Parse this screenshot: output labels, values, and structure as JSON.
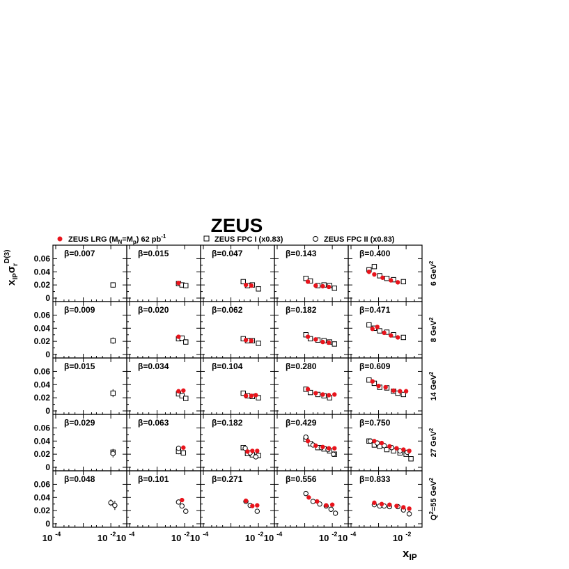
{
  "title": "ZEUS",
  "legend": [
    {
      "label": "ZEUS LRG (M_N=M_p) 62 pb^-1",
      "marker": "filled-circle",
      "color": "#e8141c"
    },
    {
      "label": "ZEUS FPC I (x0.83)",
      "marker": "open-square",
      "color": "#000000"
    },
    {
      "label": "ZEUS FPC II (x0.83)",
      "marker": "open-circle",
      "color": "#000000"
    }
  ],
  "y_axis_label": "x_IP σ_r^D(3)",
  "x_axis_label": "x_IP",
  "y_tick_labels": [
    "0",
    "0.02",
    "0.04",
    "0.06"
  ],
  "x_tick_labels": [
    "10^-4",
    "10^-2"
  ],
  "q2_row_labels": [
    "6 GeV^2",
    "8 GeV^2",
    "14 GeV^2",
    "27 GeV^2",
    "Q^2=55 GeV^2"
  ],
  "chart_data": {
    "type": "scatter",
    "layout": "grid 5 rows x 5 columns",
    "xscale": "log",
    "xlim": [
      0.0001,
      0.03
    ],
    "ylim": [
      0,
      0.07
    ],
    "x_ticks": [
      0.0001,
      0.01
    ],
    "y_ticks": [
      0,
      0.02,
      0.04,
      0.06
    ],
    "series_names": [
      "ZEUS LRG (M_N=M_p) 62 pb^-1",
      "ZEUS FPC I (x0.83)",
      "ZEUS FPC II (x0.83)"
    ],
    "panels": [
      {
        "q2": "6 GeV^2",
        "beta": "β=0.007",
        "lrg": [],
        "fpc1": [
          [
            0.012,
            0.02,
            0.004
          ]
        ],
        "fpc2": []
      },
      {
        "q2": "6 GeV^2",
        "beta": "β=0.015",
        "lrg": [
          [
            0.006,
            0.023,
            0.001
          ]
        ],
        "fpc1": [
          [
            0.006,
            0.022,
            0.002
          ],
          [
            0.008,
            0.02,
            0.003
          ],
          [
            0.011,
            0.019,
            0.004
          ]
        ],
        "fpc2": []
      },
      {
        "q2": "6 GeV^2",
        "beta": "β=0.047",
        "lrg": [
          [
            0.0035,
            0.02,
            0.001
          ],
          [
            0.0055,
            0.019,
            0.001
          ]
        ],
        "fpc1": [
          [
            0.0028,
            0.025,
            0.002
          ],
          [
            0.004,
            0.019,
            0.002
          ],
          [
            0.006,
            0.02,
            0.002
          ],
          [
            0.01,
            0.014,
            0.003
          ]
        ],
        "fpc2": []
      },
      {
        "q2": "6 GeV^2",
        "beta": "β=0.143",
        "lrg": [
          [
            0.0013,
            0.025,
            0.001
          ],
          [
            0.0025,
            0.019,
            0.001
          ],
          [
            0.0045,
            0.018,
            0.001
          ],
          [
            0.0075,
            0.017,
            0.001
          ]
        ],
        "fpc1": [
          [
            0.0011,
            0.03,
            0.002
          ],
          [
            0.0016,
            0.026,
            0.002
          ],
          [
            0.003,
            0.019,
            0.002
          ],
          [
            0.005,
            0.02,
            0.002
          ],
          [
            0.008,
            0.019,
            0.002
          ],
          [
            0.012,
            0.015,
            0.002
          ]
        ],
        "fpc2": []
      },
      {
        "q2": "6 GeV^2",
        "beta": "β=0.400",
        "lrg": [
          [
            0.00045,
            0.04,
            0.002
          ],
          [
            0.0007,
            0.036,
            0.001
          ],
          [
            0.0014,
            0.031,
            0.001
          ],
          [
            0.0028,
            0.027,
            0.001
          ],
          [
            0.005,
            0.024,
            0.001
          ]
        ],
        "fpc1": [
          [
            0.00045,
            0.043,
            0.003
          ],
          [
            0.0007,
            0.048,
            0.003
          ],
          [
            0.0011,
            0.034,
            0.002
          ],
          [
            0.002,
            0.03,
            0.002
          ],
          [
            0.0035,
            0.028,
            0.002
          ],
          [
            0.008,
            0.025,
            0.002
          ]
        ],
        "fpc2": []
      },
      {
        "q2": "8 GeV^2",
        "beta": "β=0.009",
        "lrg": [],
        "fpc1": [
          [
            0.012,
            0.021,
            0.005
          ]
        ],
        "fpc2": []
      },
      {
        "q2": "8 GeV^2",
        "beta": "β=0.020",
        "lrg": [
          [
            0.006,
            0.027,
            0.001
          ]
        ],
        "fpc1": [
          [
            0.006,
            0.024,
            0.002
          ],
          [
            0.008,
            0.025,
            0.003
          ],
          [
            0.011,
            0.019,
            0.004
          ]
        ],
        "fpc2": []
      },
      {
        "q2": "8 GeV^2",
        "beta": "β=0.062",
        "lrg": [
          [
            0.0035,
            0.022,
            0.001
          ],
          [
            0.0055,
            0.021,
            0.001
          ]
        ],
        "fpc1": [
          [
            0.0028,
            0.024,
            0.002
          ],
          [
            0.004,
            0.021,
            0.002
          ],
          [
            0.006,
            0.021,
            0.002
          ],
          [
            0.01,
            0.017,
            0.003
          ]
        ],
        "fpc2": []
      },
      {
        "q2": "8 GeV^2",
        "beta": "β=0.182",
        "lrg": [
          [
            0.0013,
            0.027,
            0.001
          ],
          [
            0.0025,
            0.023,
            0.001
          ],
          [
            0.0045,
            0.019,
            0.001
          ],
          [
            0.0075,
            0.018,
            0.001
          ]
        ],
        "fpc1": [
          [
            0.0011,
            0.03,
            0.002
          ],
          [
            0.0016,
            0.024,
            0.002
          ],
          [
            0.003,
            0.022,
            0.002
          ],
          [
            0.005,
            0.021,
            0.002
          ],
          [
            0.008,
            0.019,
            0.002
          ],
          [
            0.012,
            0.016,
            0.002
          ]
        ],
        "fpc2": []
      },
      {
        "q2": "8 GeV^2",
        "beta": "β=0.471",
        "lrg": [
          [
            0.0006,
            0.039,
            0.001
          ],
          [
            0.0009,
            0.042,
            0.001
          ],
          [
            0.0016,
            0.033,
            0.001
          ],
          [
            0.0028,
            0.029,
            0.001
          ],
          [
            0.005,
            0.026,
            0.001
          ]
        ],
        "fpc1": [
          [
            0.00045,
            0.045,
            0.003
          ],
          [
            0.0007,
            0.04,
            0.003
          ],
          [
            0.0011,
            0.036,
            0.002
          ],
          [
            0.002,
            0.034,
            0.002
          ],
          [
            0.0035,
            0.03,
            0.002
          ],
          [
            0.008,
            0.026,
            0.002
          ]
        ],
        "fpc2": []
      },
      {
        "q2": "14 GeV^2",
        "beta": "β=0.015",
        "lrg": [],
        "fpc1": [
          [
            0.012,
            0.027,
            0.006
          ]
        ],
        "fpc2": []
      },
      {
        "q2": "14 GeV^2",
        "beta": "β=0.034",
        "lrg": [
          [
            0.006,
            0.03,
            0.001
          ],
          [
            0.009,
            0.031,
            0.001
          ]
        ],
        "fpc1": [
          [
            0.006,
            0.026,
            0.002
          ],
          [
            0.008,
            0.023,
            0.003
          ],
          [
            0.011,
            0.019,
            0.004
          ]
        ],
        "fpc2": []
      },
      {
        "q2": "14 GeV^2",
        "beta": "β=0.104",
        "lrg": [
          [
            0.0035,
            0.023,
            0.001
          ],
          [
            0.0055,
            0.023,
            0.001
          ],
          [
            0.008,
            0.024,
            0.001
          ]
        ],
        "fpc1": [
          [
            0.0028,
            0.027,
            0.002
          ],
          [
            0.004,
            0.023,
            0.002
          ],
          [
            0.006,
            0.022,
            0.002
          ],
          [
            0.01,
            0.02,
            0.003
          ]
        ],
        "fpc2": []
      },
      {
        "q2": "14 GeV^2",
        "beta": "β=0.280",
        "lrg": [
          [
            0.0013,
            0.033,
            0.001
          ],
          [
            0.0025,
            0.027,
            0.001
          ],
          [
            0.0045,
            0.025,
            0.001
          ],
          [
            0.0075,
            0.024,
            0.001
          ],
          [
            0.012,
            0.025,
            0.001
          ]
        ],
        "fpc1": [
          [
            0.0011,
            0.033,
            0.002
          ],
          [
            0.0016,
            0.028,
            0.002
          ],
          [
            0.003,
            0.025,
            0.002
          ],
          [
            0.005,
            0.023,
            0.002
          ],
          [
            0.008,
            0.02,
            0.002
          ]
        ],
        "fpc2": []
      },
      {
        "q2": "14 GeV^2",
        "beta": "β=0.609",
        "lrg": [
          [
            0.0006,
            0.045,
            0.001
          ],
          [
            0.001,
            0.038,
            0.001
          ],
          [
            0.0018,
            0.036,
            0.001
          ],
          [
            0.0035,
            0.031,
            0.001
          ],
          [
            0.006,
            0.03,
            0.001
          ],
          [
            0.01,
            0.03,
            0.001
          ]
        ],
        "fpc1": [
          [
            0.00045,
            0.047,
            0.003
          ],
          [
            0.0007,
            0.042,
            0.003
          ],
          [
            0.0011,
            0.036,
            0.002
          ],
          [
            0.002,
            0.035,
            0.002
          ],
          [
            0.0035,
            0.03,
            0.002
          ],
          [
            0.005,
            0.027,
            0.002
          ],
          [
            0.008,
            0.025,
            0.002
          ]
        ],
        "fpc2": []
      },
      {
        "q2": "27 GeV^2",
        "beta": "β=0.029",
        "lrg": [],
        "fpc1": [
          [
            0.012,
            0.023,
            0.005
          ]
        ],
        "fpc2": [
          [
            0.012,
            0.021,
            0.006
          ]
        ]
      },
      {
        "q2": "27 GeV^2",
        "beta": "β=0.063",
        "lrg": [
          [
            0.009,
            0.03,
            0.001
          ]
        ],
        "fpc1": [
          [
            0.006,
            0.024,
            0.004
          ],
          [
            0.009,
            0.022,
            0.004
          ]
        ],
        "fpc2": [
          [
            0.006,
            0.029,
            0.004
          ]
        ]
      },
      {
        "q2": "27 GeV^2",
        "beta": "β=0.182",
        "lrg": [
          [
            0.004,
            0.024,
            0.001
          ],
          [
            0.006,
            0.025,
            0.001
          ],
          [
            0.009,
            0.025,
            0.001
          ]
        ],
        "fpc1": [
          [
            0.0028,
            0.03,
            0.002
          ],
          [
            0.004,
            0.021,
            0.003
          ],
          [
            0.006,
            0.019,
            0.003
          ],
          [
            0.01,
            0.018,
            0.004
          ]
        ],
        "fpc2": [
          [
            0.0033,
            0.029,
            0.002
          ],
          [
            0.005,
            0.022,
            0.003
          ],
          [
            0.008,
            0.016,
            0.004
          ]
        ]
      },
      {
        "q2": "27 GeV^2",
        "beta": "β=0.429",
        "lrg": [
          [
            0.0013,
            0.04,
            0.001
          ],
          [
            0.0025,
            0.033,
            0.001
          ],
          [
            0.0045,
            0.031,
            0.001
          ],
          [
            0.0075,
            0.029,
            0.001
          ],
          [
            0.012,
            0.029,
            0.001
          ]
        ],
        "fpc1": [
          [
            0.0011,
            0.043,
            0.003
          ],
          [
            0.0016,
            0.036,
            0.003
          ],
          [
            0.003,
            0.03,
            0.002
          ],
          [
            0.005,
            0.028,
            0.002
          ],
          [
            0.008,
            0.025,
            0.002
          ],
          [
            0.012,
            0.02,
            0.003
          ]
        ],
        "fpc2": [
          [
            0.0011,
            0.046,
            0.003
          ],
          [
            0.002,
            0.034,
            0.003
          ],
          [
            0.004,
            0.03,
            0.003
          ],
          [
            0.007,
            0.027,
            0.003
          ],
          [
            0.011,
            0.02,
            0.004
          ]
        ]
      },
      {
        "q2": "27 GeV^2",
        "beta": "β=0.750",
        "lrg": [
          [
            0.0007,
            0.04,
            0.001
          ],
          [
            0.0013,
            0.037,
            0.001
          ],
          [
            0.0025,
            0.032,
            0.001
          ],
          [
            0.0045,
            0.029,
            0.001
          ],
          [
            0.008,
            0.027,
            0.001
          ],
          [
            0.013,
            0.025,
            0.001
          ]
        ],
        "fpc1": [
          [
            0.00045,
            0.04,
            0.003
          ],
          [
            0.0007,
            0.034,
            0.003
          ],
          [
            0.0011,
            0.032,
            0.003
          ],
          [
            0.002,
            0.027,
            0.003
          ],
          [
            0.0035,
            0.025,
            0.003
          ],
          [
            0.006,
            0.022,
            0.003
          ],
          [
            0.01,
            0.02,
            0.003
          ],
          [
            0.015,
            0.013,
            0.003
          ]
        ],
        "fpc2": [
          [
            0.0005,
            0.04,
            0.003
          ],
          [
            0.0009,
            0.037,
            0.003
          ],
          [
            0.0016,
            0.033,
            0.003
          ],
          [
            0.003,
            0.03,
            0.003
          ],
          [
            0.006,
            0.025,
            0.003
          ],
          [
            0.011,
            0.023,
            0.003
          ]
        ]
      },
      {
        "q2": "Q^2=55 GeV^2",
        "beta": "β=0.048",
        "lrg": [],
        "fpc1": [],
        "fpc2": [
          [
            0.01,
            0.032,
            0.005
          ],
          [
            0.014,
            0.028,
            0.007
          ]
        ]
      },
      {
        "q2": "Q^2=55 GeV^2",
        "beta": "β=0.101",
        "lrg": [
          [
            0.008,
            0.036,
            0.001
          ]
        ],
        "fpc1": [],
        "fpc2": [
          [
            0.006,
            0.033,
            0.002
          ],
          [
            0.008,
            0.027,
            0.003
          ],
          [
            0.011,
            0.019,
            0.004
          ]
        ]
      },
      {
        "q2": "Q^2=55 GeV^2",
        "beta": "β=0.271",
        "lrg": [
          [
            0.0035,
            0.035,
            0.001
          ],
          [
            0.006,
            0.027,
            0.001
          ],
          [
            0.009,
            0.028,
            0.001
          ]
        ],
        "fpc1": [],
        "fpc2": [
          [
            0.0035,
            0.034,
            0.002
          ],
          [
            0.005,
            0.028,
            0.002
          ],
          [
            0.009,
            0.019,
            0.003
          ]
        ]
      },
      {
        "q2": "Q^2=55 GeV^2",
        "beta": "β=0.556",
        "lrg": [
          [
            0.0014,
            0.04,
            0.001
          ],
          [
            0.0028,
            0.034,
            0.001
          ],
          [
            0.006,
            0.028,
            0.001
          ],
          [
            0.01,
            0.029,
            0.001
          ]
        ],
        "fpc1": [],
        "fpc2": [
          [
            0.0011,
            0.046,
            0.003
          ],
          [
            0.002,
            0.034,
            0.003
          ],
          [
            0.0035,
            0.03,
            0.003
          ],
          [
            0.006,
            0.027,
            0.003
          ],
          [
            0.009,
            0.022,
            0.003
          ],
          [
            0.013,
            0.016,
            0.004
          ]
        ]
      },
      {
        "q2": "Q^2=55 GeV^2",
        "beta": "β=0.833",
        "lrg": [
          [
            0.0007,
            0.032,
            0.001
          ],
          [
            0.0013,
            0.03,
            0.001
          ],
          [
            0.0025,
            0.029,
            0.001
          ],
          [
            0.0045,
            0.027,
            0.001
          ],
          [
            0.008,
            0.025,
            0.001
          ],
          [
            0.013,
            0.023,
            0.001
          ]
        ],
        "fpc1": [],
        "fpc2": [
          [
            0.0007,
            0.029,
            0.003
          ],
          [
            0.0011,
            0.027,
            0.003
          ],
          [
            0.0016,
            0.027,
            0.003
          ],
          [
            0.0025,
            0.026,
            0.003
          ],
          [
            0.005,
            0.026,
            0.003
          ],
          [
            0.008,
            0.021,
            0.003
          ],
          [
            0.013,
            0.015,
            0.003
          ]
        ]
      }
    ]
  }
}
